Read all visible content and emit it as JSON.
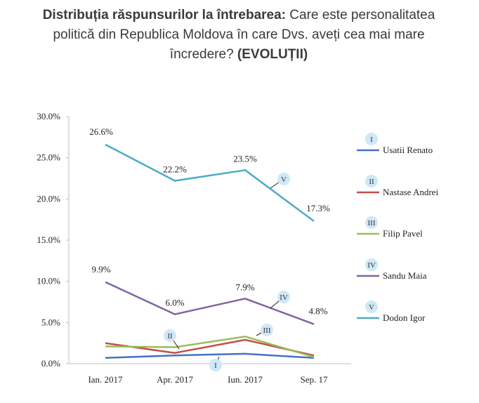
{
  "title": {
    "bold_part": "Distribuția răspunsurilor la întrebarea:",
    "question": "Care este personalitatea politică din Republica Moldova în care Dvs. aveți cea mai mare încredere?",
    "suffix": "(EVOLUȚII)"
  },
  "chart_data": {
    "type": "line",
    "categories": [
      "Ian. 2017",
      "Apr. 2017",
      "Iun. 2017",
      "Sep. 17"
    ],
    "ylim": [
      0,
      30
    ],
    "yticks": [
      "0.0%",
      "5.0%",
      "10.0%",
      "15.0%",
      "20.0%",
      "25.0%",
      "30.0%"
    ],
    "series": [
      {
        "name": "Usatii Renato",
        "roman": "I",
        "color": "#4472c4",
        "values": [
          0.7,
          1.0,
          1.2,
          0.7
        ],
        "labels": []
      },
      {
        "name": "Nastase Andrei",
        "roman": "II",
        "color": "#c0504d",
        "values": [
          2.5,
          1.3,
          2.9,
          1.0
        ],
        "labels": []
      },
      {
        "name": "Filip Pavel",
        "roman": "III",
        "color": "#9bbb59",
        "values": [
          2.1,
          2.0,
          3.3,
          0.8
        ],
        "labels": []
      },
      {
        "name": "Sandu Maia",
        "roman": "IV",
        "color": "#8064a2",
        "values": [
          9.9,
          6.0,
          7.9,
          4.8
        ],
        "labels": [
          "9.9%",
          "6.0%",
          "7.9%",
          "4.8%"
        ]
      },
      {
        "name": "Dodon Igor",
        "roman": "V",
        "color": "#4bacc6",
        "values": [
          26.6,
          22.2,
          23.5,
          17.3
        ],
        "labels": [
          "26.6%",
          "22.2%",
          "23.5%",
          "17.3%"
        ]
      }
    ]
  }
}
